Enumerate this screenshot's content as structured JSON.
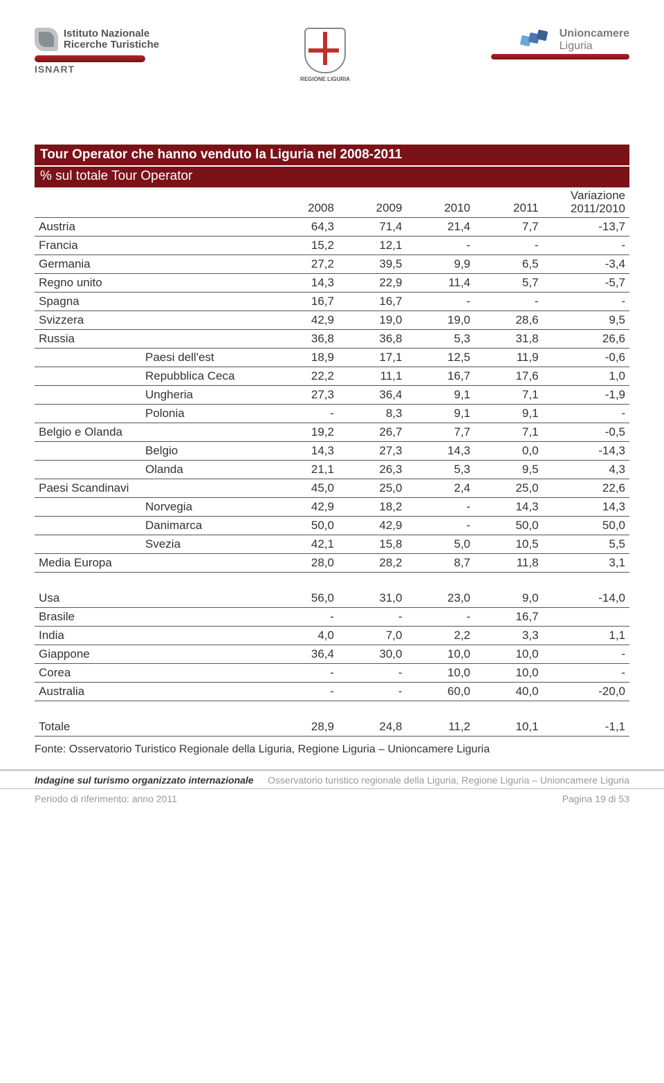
{
  "header": {
    "isnart_line1": "Istituto Nazionale",
    "isnart_line2": "Ricerche Turistiche",
    "isnart_label": "ISNART",
    "regione_label": "REGIONE LIGURIA",
    "union_prefix": "Unioncamere",
    "union_region": "Liguria"
  },
  "title": {
    "main": "Tour Operator che hanno venduto la Liguria nel 2008-2011",
    "sub": "% sul totale Tour Operator"
  },
  "columns": {
    "y2008": "2008",
    "y2009": "2009",
    "y2010": "2010",
    "y2011": "2011",
    "var_l1": "Variazione",
    "var_l2": "2011/2010"
  },
  "rows": [
    {
      "label": "Austria",
      "indent": false,
      "v": [
        "64,3",
        "71,4",
        "21,4",
        "7,7",
        "-13,7"
      ]
    },
    {
      "label": "Francia",
      "indent": false,
      "v": [
        "15,2",
        "12,1",
        "-",
        "-",
        "-"
      ]
    },
    {
      "label": "Germania",
      "indent": false,
      "v": [
        "27,2",
        "39,5",
        "9,9",
        "6,5",
        "-3,4"
      ]
    },
    {
      "label": "Regno unito",
      "indent": false,
      "v": [
        "14,3",
        "22,9",
        "11,4",
        "5,7",
        "-5,7"
      ]
    },
    {
      "label": "Spagna",
      "indent": false,
      "v": [
        "16,7",
        "16,7",
        "-",
        "-",
        "-"
      ]
    },
    {
      "label": "Svizzera",
      "indent": false,
      "v": [
        "42,9",
        "19,0",
        "19,0",
        "28,6",
        "9,5"
      ]
    },
    {
      "label": "Russia",
      "indent": false,
      "v": [
        "36,8",
        "36,8",
        "5,3",
        "31,8",
        "26,6"
      ]
    },
    {
      "label": "Paesi dell'est",
      "indent": true,
      "v": [
        "18,9",
        "17,1",
        "12,5",
        "11,9",
        "-0,6"
      ]
    },
    {
      "label": "Repubblica Ceca",
      "indent": true,
      "v": [
        "22,2",
        "11,1",
        "16,7",
        "17,6",
        "1,0"
      ]
    },
    {
      "label": "Ungheria",
      "indent": true,
      "v": [
        "27,3",
        "36,4",
        "9,1",
        "7,1",
        "-1,9"
      ]
    },
    {
      "label": "Polonia",
      "indent": true,
      "v": [
        "-",
        "8,3",
        "9,1",
        "9,1",
        "-"
      ]
    },
    {
      "label": "Belgio e Olanda",
      "indent": false,
      "v": [
        "19,2",
        "26,7",
        "7,7",
        "7,1",
        "-0,5"
      ]
    },
    {
      "label": "Belgio",
      "indent": true,
      "v": [
        "14,3",
        "27,3",
        "14,3",
        "0,0",
        "-14,3"
      ]
    },
    {
      "label": "Olanda",
      "indent": true,
      "v": [
        "21,1",
        "26,3",
        "5,3",
        "9,5",
        "4,3"
      ]
    },
    {
      "label": "Paesi Scandinavi",
      "indent": false,
      "v": [
        "45,0",
        "25,0",
        "2,4",
        "25,0",
        "22,6"
      ]
    },
    {
      "label": "Norvegia",
      "indent": true,
      "v": [
        "42,9",
        "18,2",
        "-",
        "14,3",
        "14,3"
      ]
    },
    {
      "label": "Danimarca",
      "indent": true,
      "v": [
        "50,0",
        "42,9",
        "-",
        "50,0",
        "50,0"
      ]
    },
    {
      "label": "Svezia",
      "indent": true,
      "v": [
        "42,1",
        "15,8",
        "5,0",
        "10,5",
        "5,5"
      ]
    },
    {
      "label": "Media Europa",
      "indent": false,
      "v": [
        "28,0",
        "28,2",
        "8,7",
        "11,8",
        "3,1"
      ]
    }
  ],
  "rows2": [
    {
      "label": "Usa",
      "indent": false,
      "v": [
        "56,0",
        "31,0",
        "23,0",
        "9,0",
        "-14,0"
      ]
    },
    {
      "label": "Brasile",
      "indent": false,
      "v": [
        "-",
        "-",
        "-",
        "16,7",
        ""
      ]
    },
    {
      "label": "India",
      "indent": false,
      "v": [
        "4,0",
        "7,0",
        "2,2",
        "3,3",
        "1,1"
      ]
    },
    {
      "label": "Giappone",
      "indent": false,
      "v": [
        "36,4",
        "30,0",
        "10,0",
        "10,0",
        "-"
      ]
    },
    {
      "label": "Corea",
      "indent": false,
      "v": [
        "-",
        "-",
        "10,0",
        "10,0",
        "-"
      ]
    },
    {
      "label": "Australia",
      "indent": false,
      "v": [
        "-",
        "-",
        "60,0",
        "40,0",
        "-20,0"
      ]
    }
  ],
  "totale": {
    "label": "Totale",
    "v": [
      "28,9",
      "24,8",
      "11,2",
      "10,1",
      "-1,1"
    ]
  },
  "source": "Fonte: Osservatorio Turistico Regionale della Liguria, Regione Liguria – Unioncamere Liguria",
  "footer": {
    "left": "Indagine sul turismo organizzato internazionale",
    "right": "Osservatorio turistico regionale della Liguria, Regione Liguria – Unioncamere Liguria",
    "period": "Periodo di riferimento: anno 2011",
    "page": "Pagina 19 di 53"
  }
}
